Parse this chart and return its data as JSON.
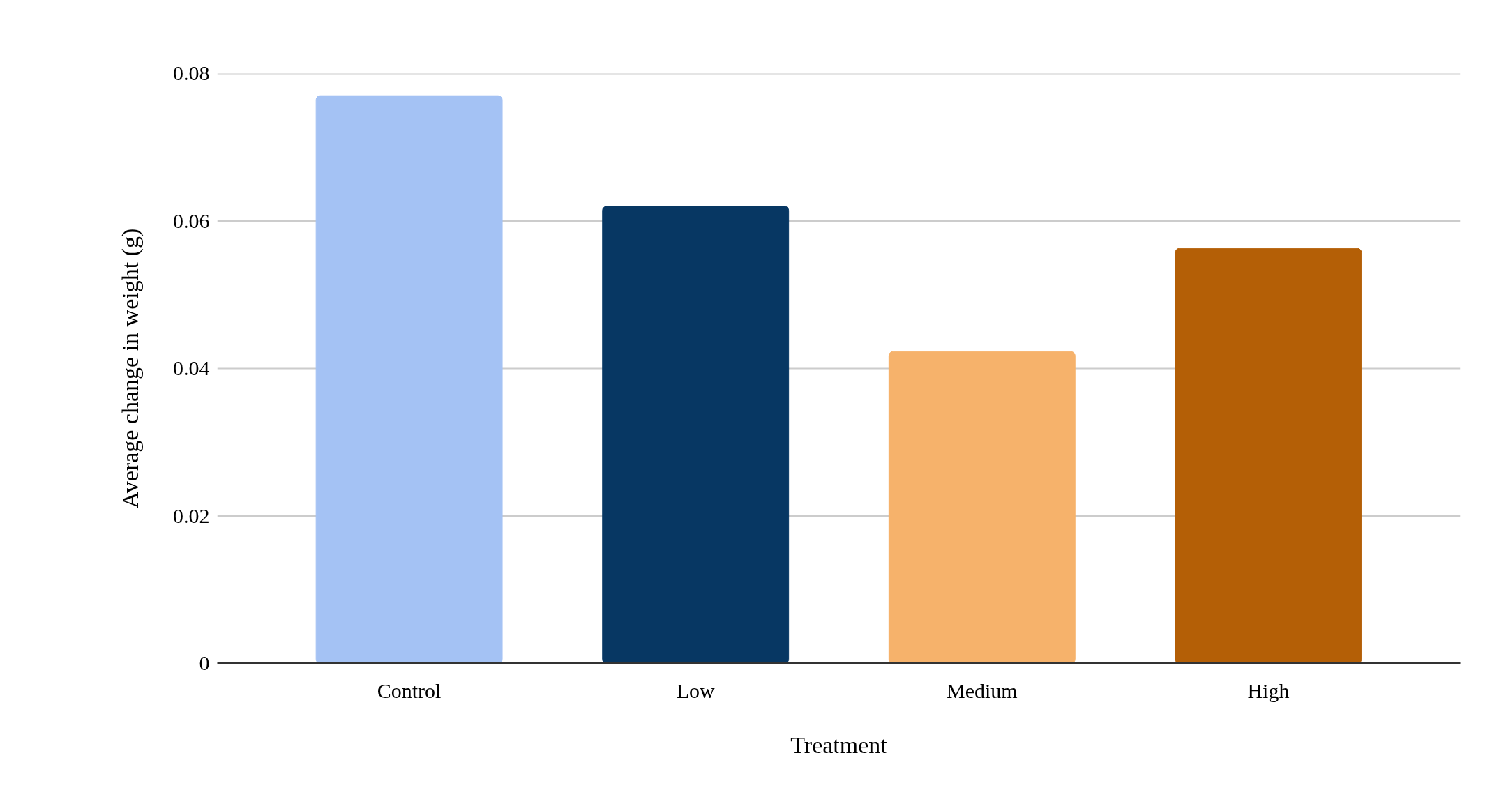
{
  "chart_data": {
    "type": "bar",
    "xlabel": "Treatment",
    "ylabel": "Average change in weight (g)",
    "categories": [
      "Control",
      "Low",
      "Medium",
      "High"
    ],
    "values": [
      0.077,
      0.062,
      0.0423,
      0.0563
    ],
    "colors": [
      "#a4c2f4",
      "#073763",
      "#f6b26b",
      "#b45f06"
    ],
    "ylim": [
      0,
      0.08
    ],
    "yticks": [
      {
        "value": 0,
        "label": "0"
      },
      {
        "value": 0.02,
        "label": "0.02"
      },
      {
        "value": 0.04,
        "label": "0.04"
      },
      {
        "value": 0.06,
        "label": "0.06"
      },
      {
        "value": 0.08,
        "label": "0.08"
      }
    ],
    "grid": "y"
  }
}
